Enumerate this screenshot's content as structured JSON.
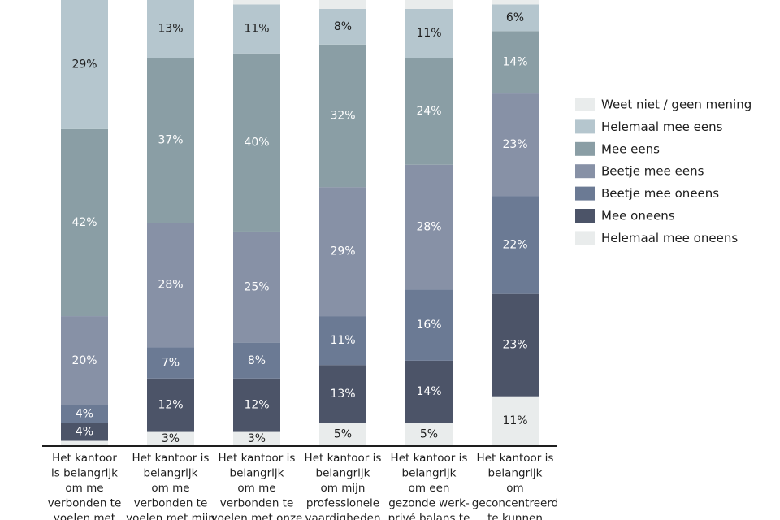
{
  "chart_data": {
    "type": "bar",
    "stacked": true,
    "orientation": "vertical",
    "value_unit": "%",
    "categories": [
      [
        "Het kantoor",
        "is belangrijk",
        "om me",
        "verbonden te",
        "voelen met"
      ],
      [
        "Het kantoor is",
        "belangrijk",
        "om me",
        "verbonden te",
        "voelen met mijn"
      ],
      [
        "Het kantoor is",
        "belangrijk",
        "om me",
        "verbonden te",
        "voelen met onze"
      ],
      [
        "Het kantoor is",
        "belangrijk",
        "om mijn",
        "professionele",
        "vaardigheden"
      ],
      [
        "Het kantoor is",
        "belangrijk",
        "om een",
        "gezonde werk-",
        "privé balans te"
      ],
      [
        "Het kantoor is",
        "belangrijk",
        "om",
        "geconcentreerd",
        "te kunnen"
      ]
    ],
    "series": [
      {
        "name": "Helemaal mee oneens",
        "color": "#e9ecec",
        "label_color": "#1e1e1e",
        "values": [
          1,
          3,
          3,
          5,
          5,
          11
        ]
      },
      {
        "name": "Mee oneens",
        "color": "#4c5468",
        "label_color": "#ffffff",
        "values": [
          4,
          12,
          12,
          13,
          14,
          23
        ]
      },
      {
        "name": "Beetje mee oneens",
        "color": "#6b7a94",
        "label_color": "#ffffff",
        "values": [
          4,
          7,
          8,
          11,
          16,
          22
        ]
      },
      {
        "name": "Beetje mee eens",
        "color": "#8791a6",
        "label_color": "#ffffff",
        "values": [
          20,
          28,
          25,
          29,
          28,
          23
        ]
      },
      {
        "name": "Mee eens",
        "color": "#8a9ea5",
        "label_color": "#ffffff",
        "values": [
          42,
          37,
          40,
          32,
          24,
          14
        ]
      },
      {
        "name": "Helemaal mee eens",
        "color": "#b5c6ce",
        "label_color": "#1e1e1e",
        "values": [
          29,
          13,
          11,
          8,
          11,
          6
        ]
      },
      {
        "name": "Weet niet / geen mening",
        "color": "#e9ecec",
        "label_color": "#1e1e1e",
        "values": [
          0,
          0,
          1,
          2,
          2,
          1
        ]
      }
    ],
    "segment_labels": [
      [
        "",
        "4%",
        "4%",
        "20%",
        "42%",
        "29%",
        ""
      ],
      [
        "3%",
        "12%",
        "7%",
        "28%",
        "37%",
        "13%",
        ""
      ],
      [
        "3%",
        "12%",
        "8%",
        "25%",
        "40%",
        "11%",
        ""
      ],
      [
        "5%",
        "13%",
        "11%",
        "29%",
        "32%",
        "8%",
        ""
      ],
      [
        "5%",
        "14%",
        "16%",
        "28%",
        "24%",
        "11%",
        ""
      ],
      [
        "11%",
        "23%",
        "22%",
        "23%",
        "14%",
        "6%",
        ""
      ]
    ],
    "legend": {
      "position": "right",
      "order": [
        "Weet niet / geen mening",
        "Helemaal mee eens",
        "Mee eens",
        "Beetje mee eens",
        "Beetje mee oneens",
        "Mee oneens",
        "Helemaal mee oneens"
      ]
    },
    "ylim": [
      0,
      100
    ],
    "grid": false
  }
}
